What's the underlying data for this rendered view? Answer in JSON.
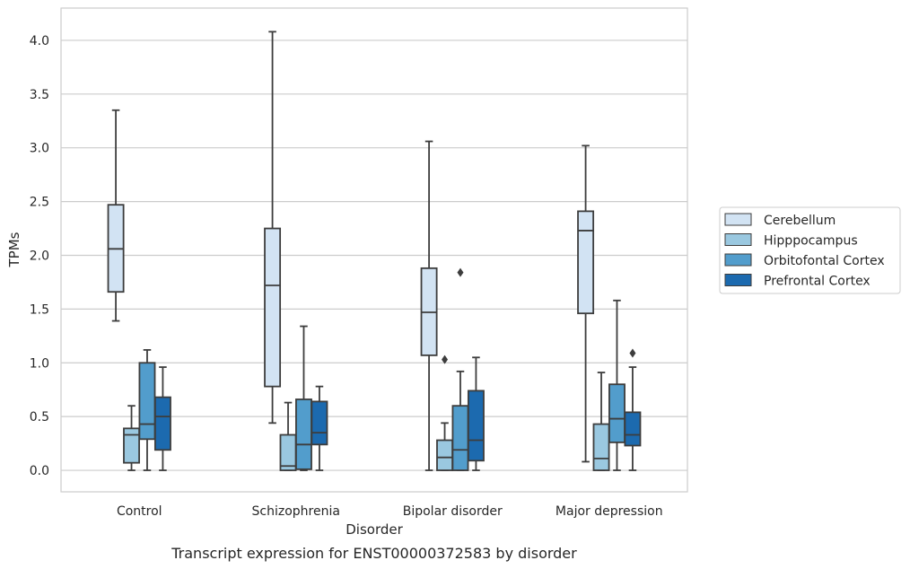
{
  "chart_data": {
    "type": "box",
    "caption": "Transcript expression for ENST00000372583 by disorder",
    "xlabel": "Disorder",
    "ylabel": "TPMs",
    "ylim": [
      -0.2,
      4.3
    ],
    "yticks": [
      "0.0",
      "0.5",
      "1.0",
      "1.5",
      "2.0",
      "2.5",
      "3.0",
      "3.5",
      "4.0"
    ],
    "grid": true,
    "legend_placement": "right",
    "categories": [
      "Control",
      "Schizophrenia",
      "Bipolar disorder",
      "Major depression"
    ],
    "series": [
      {
        "name": "Cerebellum",
        "color": "#d2e3f3",
        "boxes": [
          {
            "whislo": 1.39,
            "q1": 1.66,
            "med": 2.06,
            "q3": 2.47,
            "whishi": 3.35,
            "fliers": []
          },
          {
            "whislo": 0.44,
            "q1": 0.78,
            "med": 1.72,
            "q3": 2.25,
            "whishi": 4.08,
            "fliers": []
          },
          {
            "whislo": 0.0,
            "q1": 1.07,
            "med": 1.47,
            "q3": 1.88,
            "whishi": 3.06,
            "fliers": []
          },
          {
            "whislo": 0.08,
            "q1": 1.46,
            "med": 2.23,
            "q3": 2.41,
            "whishi": 3.02,
            "fliers": []
          }
        ]
      },
      {
        "name": "Hipppocampus",
        "color": "#9ac8e0",
        "boxes": [
          {
            "whislo": 0.0,
            "q1": 0.07,
            "med": 0.33,
            "q3": 0.39,
            "whishi": 0.6,
            "fliers": []
          },
          {
            "whislo": 0.0,
            "q1": 0.0,
            "med": 0.04,
            "q3": 0.33,
            "whishi": 0.63,
            "fliers": []
          },
          {
            "whislo": 0.0,
            "q1": 0.0,
            "med": 0.12,
            "q3": 0.28,
            "whishi": 0.44,
            "fliers": [
              1.03
            ]
          },
          {
            "whislo": 0.0,
            "q1": 0.0,
            "med": 0.11,
            "q3": 0.43,
            "whishi": 0.91,
            "fliers": []
          }
        ]
      },
      {
        "name": "Orbitofontal Cortex",
        "color": "#529dcc",
        "boxes": [
          {
            "whislo": 0.0,
            "q1": 0.29,
            "med": 0.43,
            "q3": 1.0,
            "whishi": 1.12,
            "fliers": []
          },
          {
            "whislo": 0.0,
            "q1": 0.01,
            "med": 0.24,
            "q3": 0.66,
            "whishi": 1.34,
            "fliers": []
          },
          {
            "whislo": 0.0,
            "q1": 0.0,
            "med": 0.19,
            "q3": 0.6,
            "whishi": 0.92,
            "fliers": [
              1.84
            ]
          },
          {
            "whislo": 0.0,
            "q1": 0.26,
            "med": 0.48,
            "q3": 0.8,
            "whishi": 1.58,
            "fliers": []
          }
        ]
      },
      {
        "name": "Prefrontal Cortex",
        "color": "#1c6aaf",
        "boxes": [
          {
            "whislo": 0.0,
            "q1": 0.19,
            "med": 0.5,
            "q3": 0.68,
            "whishi": 0.96,
            "fliers": []
          },
          {
            "whislo": 0.0,
            "q1": 0.24,
            "med": 0.35,
            "q3": 0.64,
            "whishi": 0.78,
            "fliers": []
          },
          {
            "whislo": 0.0,
            "q1": 0.09,
            "med": 0.28,
            "q3": 0.74,
            "whishi": 1.05,
            "fliers": []
          },
          {
            "whislo": 0.0,
            "q1": 0.23,
            "med": 0.33,
            "q3": 0.54,
            "whishi": 0.96,
            "fliers": [
              1.09
            ]
          }
        ]
      }
    ]
  }
}
